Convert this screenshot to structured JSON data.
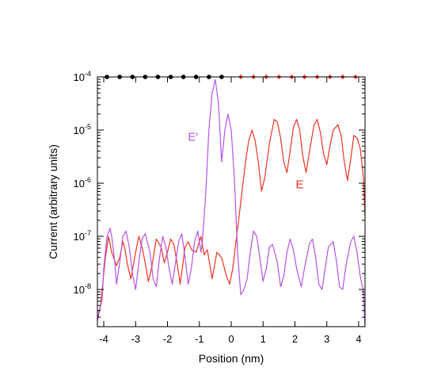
{
  "chart_data": {
    "type": "line",
    "title": "",
    "xlabel": "Position (nm)",
    "ylabel": "Current (arbitrary units)",
    "xlim": [
      -4.2,
      4.2
    ],
    "ylim_log10": [
      -8.7,
      -4
    ],
    "y_scale": "log",
    "x_ticks": [
      -4,
      -3,
      -2,
      -1,
      0,
      1,
      2,
      3,
      4
    ],
    "x_tick_labels": [
      "-4",
      "-3",
      "-2",
      "-1",
      "0",
      "1",
      "2",
      "3",
      "4"
    ],
    "y_ticks": [
      {
        "exp": -4,
        "base": "10",
        "sup": "-4"
      },
      {
        "exp": -5,
        "base": "10",
        "sup": "-5"
      },
      {
        "exp": -6,
        "base": "10",
        "sup": "-6"
      },
      {
        "exp": -7,
        "base": "10",
        "sup": "-7"
      },
      {
        "exp": -8,
        "base": "10",
        "sup": "-8"
      }
    ],
    "grid": false,
    "series": [
      {
        "name": "E",
        "color": "#ee3322",
        "x": [
          -4.2,
          -4.1,
          -3.95,
          -3.85,
          -3.75,
          -3.6,
          -3.5,
          -3.4,
          -3.35,
          -3.25,
          -3.15,
          -3.0,
          -2.9,
          -2.8,
          -2.7,
          -2.6,
          -2.5,
          -2.35,
          -2.2,
          -2.1,
          -2.0,
          -1.9,
          -1.8,
          -1.7,
          -1.6,
          -1.45,
          -1.35,
          -1.25,
          -1.1,
          -0.95,
          -0.85,
          -0.75,
          -0.6,
          -0.45,
          -0.3,
          -0.15,
          -0.05,
          0.05,
          0.15,
          0.25,
          0.35,
          0.45,
          0.55,
          0.65,
          0.75,
          0.85,
          0.95,
          1.05,
          1.2,
          1.35,
          1.45,
          1.55,
          1.65,
          1.75,
          1.85,
          1.95,
          2.05,
          2.15,
          2.25,
          2.35,
          2.5,
          2.6,
          2.7,
          2.8,
          2.9,
          3.0,
          3.1,
          3.2,
          3.35,
          3.45,
          3.55,
          3.65,
          3.75,
          3.85,
          3.95,
          4.05,
          4.15,
          4.2
        ],
        "log10_y": [
          -8.6,
          -8.3,
          -7.4,
          -7.0,
          -7.3,
          -7.55,
          -7.4,
          -7.1,
          -7.2,
          -7.55,
          -7.8,
          -7.3,
          -7.0,
          -7.2,
          -7.5,
          -7.85,
          -7.6,
          -7.05,
          -7.2,
          -7.5,
          -7.3,
          -7.05,
          -7.15,
          -7.5,
          -7.9,
          -7.2,
          -7.1,
          -7.25,
          -7.3,
          -7.0,
          -7.35,
          -7.25,
          -7.8,
          -7.3,
          -7.4,
          -7.75,
          -7.9,
          -7.6,
          -7.1,
          -6.6,
          -6.1,
          -5.6,
          -5.2,
          -5.0,
          -5.2,
          -5.6,
          -6.15,
          -5.9,
          -5.25,
          -4.8,
          -4.85,
          -5.15,
          -5.6,
          -5.8,
          -5.4,
          -4.95,
          -4.8,
          -5.0,
          -5.5,
          -5.8,
          -5.25,
          -4.9,
          -4.8,
          -5.05,
          -5.45,
          -5.65,
          -5.3,
          -5.0,
          -4.9,
          -5.1,
          -5.6,
          -5.95,
          -5.55,
          -5.1,
          -5.15,
          -5.35,
          -5.9,
          -6.65
        ]
      },
      {
        "name": "E'",
        "color": "#b455e6",
        "x": [
          -4.2,
          -4.15,
          -4.05,
          -4.0,
          -3.9,
          -3.8,
          -3.75,
          -3.65,
          -3.6,
          -3.5,
          -3.4,
          -3.3,
          -3.2,
          -3.1,
          -3.0,
          -2.9,
          -2.8,
          -2.7,
          -2.55,
          -2.45,
          -2.35,
          -2.25,
          -2.15,
          -2.05,
          -1.95,
          -1.85,
          -1.75,
          -1.65,
          -1.55,
          -1.45,
          -1.35,
          -1.25,
          -1.15,
          -1.05,
          -0.95,
          -0.9,
          -0.8,
          -0.7,
          -0.6,
          -0.5,
          -0.4,
          -0.3,
          -0.2,
          -0.1,
          0.0,
          0.1,
          0.2,
          0.3,
          0.4,
          0.5,
          0.6,
          0.7,
          0.8,
          0.9,
          1.0,
          1.1,
          1.2,
          1.3,
          1.45,
          1.55,
          1.65,
          1.75,
          1.85,
          1.95,
          2.05,
          2.2,
          2.3,
          2.45,
          2.55,
          2.65,
          2.75,
          2.85,
          2.95,
          3.05,
          3.2,
          3.3,
          3.4,
          3.5,
          3.6,
          3.75,
          3.85,
          3.95,
          4.05,
          4.15,
          4.2
        ],
        "log10_y": [
          -8.6,
          -8.4,
          -8.2,
          -7.6,
          -7.0,
          -6.85,
          -7.0,
          -7.5,
          -7.9,
          -7.5,
          -7.0,
          -6.9,
          -7.2,
          -7.7,
          -8.0,
          -7.5,
          -7.05,
          -6.95,
          -7.3,
          -7.8,
          -7.95,
          -7.4,
          -7.0,
          -7.2,
          -7.6,
          -7.9,
          -7.5,
          -7.1,
          -6.95,
          -7.4,
          -7.9,
          -7.6,
          -7.1,
          -6.9,
          -7.3,
          -7.05,
          -6.2,
          -5.0,
          -4.3,
          -4.05,
          -4.5,
          -5.6,
          -5.0,
          -4.7,
          -5.0,
          -5.9,
          -7.3,
          -8.1,
          -8.0,
          -7.8,
          -7.3,
          -6.9,
          -7.0,
          -7.4,
          -7.85,
          -7.6,
          -7.2,
          -7.15,
          -7.5,
          -7.95,
          -7.75,
          -7.3,
          -7.05,
          -7.25,
          -7.6,
          -7.95,
          -7.6,
          -7.15,
          -7.05,
          -7.4,
          -7.9,
          -8.0,
          -7.6,
          -7.2,
          -7.1,
          -7.45,
          -7.95,
          -8.0,
          -7.55,
          -7.1,
          -7.0,
          -7.3,
          -7.75,
          -8.05,
          -8.7
        ]
      }
    ],
    "annotations": [
      {
        "text": "E'",
        "x": -1.2,
        "log10_y": -5.2,
        "color": "#b455e6"
      },
      {
        "text": "E",
        "x": 2.15,
        "log10_y": -6.1,
        "color": "#ee3322"
      }
    ],
    "marker_rows": [
      {
        "name": "black dots",
        "shape": "dot",
        "color": "#000000",
        "log10_y": -4,
        "x": [
          -3.9,
          -3.5,
          -3.1,
          -2.7,
          -2.3,
          -1.9,
          -1.5,
          -1.1,
          -0.7,
          -0.3
        ]
      },
      {
        "name": "red diamonds",
        "shape": "diamond",
        "color": "#ee3322",
        "log10_y": -4,
        "x": [
          0.3,
          0.7,
          1.1,
          1.5,
          1.9,
          2.3,
          2.7,
          3.1,
          3.5,
          3.9
        ]
      }
    ]
  }
}
